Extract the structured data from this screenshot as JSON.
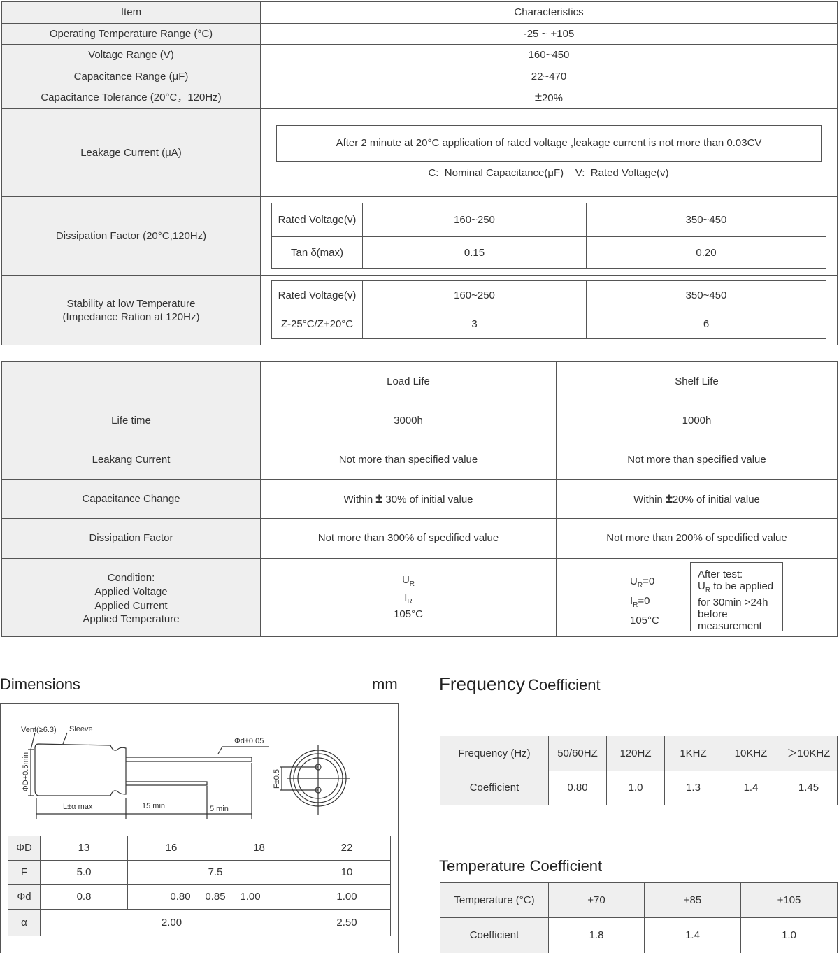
{
  "spec": {
    "header": {
      "item": "Item",
      "characteristics": "Characteristics"
    },
    "rows": [
      {
        "item": "Operating Temperature Range (°C)",
        "value": "-25 ~ +105"
      },
      {
        "item": "Voltage Range (V)",
        "value": "160~450"
      },
      {
        "item": "Capacitance Range (μF)",
        "value": "22~470"
      },
      {
        "item": "Capacitance Tolerance (20°C，120Hz)",
        "value": "20%",
        "prefix": "±"
      }
    ],
    "leakage": {
      "item": "Leakage Current (μA)",
      "formula": "After 2 minute at 20°C application of rated voltage ,leakage current is not more than 0.03CV",
      "legend": "C:  Nominal Capacitance(μF)    V:  Rated Voltage(v)"
    },
    "dissipation": {
      "item": "Dissipation Factor (20°C,120Hz)",
      "header": [
        "Rated Voltage(v)",
        "160~250",
        "350~450"
      ],
      "row": [
        "Tan δ(max)",
        "0.15",
        "0.20"
      ]
    },
    "stability": {
      "item_line1": "Stability at low Temperature",
      "item_line2": "(Impedance Ration at 120Hz)",
      "header": [
        "Rated Voltage(v)",
        "160~250",
        "350~450"
      ],
      "row": [
        "Z-25°C/Z+20°C",
        "3",
        "6"
      ]
    }
  },
  "life": {
    "header": [
      "",
      "Load Life",
      "Shelf  Life"
    ],
    "rows": [
      [
        "Life time",
        "3000h",
        "1000h"
      ],
      [
        "Leakang Current",
        "Not more than specified value",
        "Not more than specified value"
      ],
      [
        "Dissipation Factor",
        "Not more than 300% of  spedified value",
        "Not more than 200% of  spedified value"
      ]
    ],
    "capacitance_change": {
      "label": "Capacitance Change",
      "load_pre": "Within",
      "load_post": "30% of initial value",
      "shelf_pre": "Within",
      "shelf_post": "20% of initial value",
      "pm": "±"
    },
    "condition": {
      "labels": [
        "Condition:",
        "Applied Voltage",
        "Applied Current",
        "Applied Temperature"
      ],
      "load": {
        "u": "U",
        "i": "I",
        "sub": "R",
        "u_val": "",
        "i_val": "",
        "temp": "105°C"
      },
      "shelf": {
        "u": "U",
        "i": "I",
        "sub": "R",
        "u_val": "=0",
        "i_val": "=0",
        "temp": "105°C"
      },
      "note": {
        "line1": "After test:",
        "line2_u": "U",
        "line2_sub": "R",
        "line2_rest": " to be applied",
        "line3": "for 30min >24h",
        "line4": "before",
        "line5": "measurement"
      }
    }
  },
  "dimensions": {
    "title": "Dimensions",
    "unit": "mm",
    "diagram_labels": {
      "vent": "Vent(≥6.3)",
      "sleeve": "Sleeve",
      "diameter": "ΦD+0.5min",
      "lead": "Φd±0.05",
      "length": "L±α  max",
      "lead15": "15 min",
      "lead5": "5 min",
      "pitch": "F±0.5"
    },
    "table": {
      "phiD": [
        "ΦD",
        "13",
        "16",
        "18",
        "22"
      ],
      "F": [
        "F",
        "5.0",
        "7.5",
        "10"
      ],
      "phid": [
        "Φd",
        "0.8",
        "0.80     0.85     1.00",
        "1.00"
      ],
      "alpha": [
        "α",
        "2.00",
        "2.50"
      ]
    }
  },
  "frequency": {
    "title_big": "Frequency",
    "title_small": "Coefficient",
    "header": [
      "Frequency (Hz)",
      "50/60HZ",
      "120HZ",
      "1KHZ",
      "10KHZ",
      "＞10KHZ"
    ],
    "row": [
      "Coefficient",
      "0.80",
      "1.0",
      "1.3",
      "1.4",
      "1.45"
    ]
  },
  "temperature": {
    "title": "Temperature Coefficient",
    "header": [
      "Temperature (°C)",
      "+70",
      "+85",
      "+105"
    ],
    "row": [
      "Coefficient",
      "1.8",
      "1.4",
      "1.0"
    ]
  }
}
